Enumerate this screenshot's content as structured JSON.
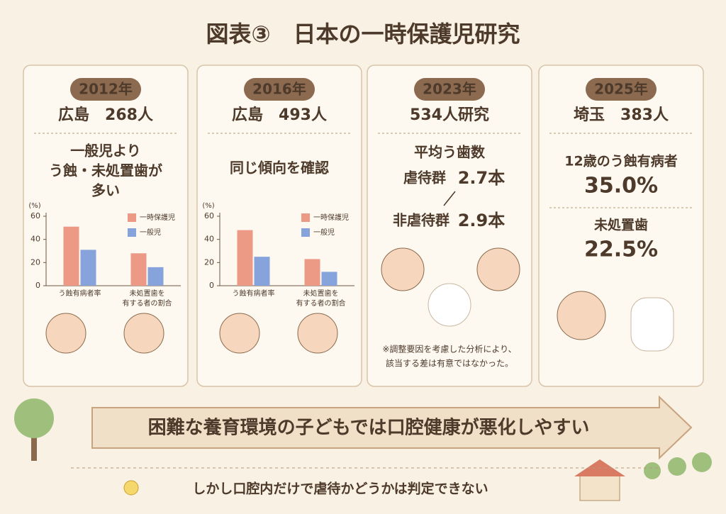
{
  "title": "図表③　日本の一時保護児研究",
  "cards": [
    {
      "year": "2012年",
      "headline": "広島　268人",
      "lines": [
        "一般児より",
        "う蝕・未処置歯が",
        "多い"
      ],
      "chart": {
        "type": "bar",
        "unit": "(%)",
        "categories": [
          [
            "う蝕有病者率"
          ],
          [
            "未処置歯を",
            "有する者の割合"
          ]
        ],
        "series": [
          {
            "name": "一時保護児",
            "color": "#ec9a86",
            "values": [
              51,
              28
            ]
          },
          {
            "name": "一般児",
            "color": "#86a3db",
            "values": [
              31,
              16
            ]
          }
        ],
        "ylim": [
          0,
          60
        ],
        "yticks": [
          0,
          20,
          40,
          60
        ]
      }
    },
    {
      "year": "2016年",
      "headline": "広島　493人",
      "lines": [
        "同じ傾向を確認"
      ],
      "chart": {
        "type": "bar",
        "unit": "(%)",
        "categories": [
          [
            "う蝕有病者率"
          ],
          [
            "未処置歯を",
            "有する者の割合"
          ]
        ],
        "series": [
          {
            "name": "一時保護児",
            "color": "#ec9a86",
            "values": [
              48,
              23
            ]
          },
          {
            "name": "一般児",
            "color": "#86a3db",
            "values": [
              25,
              12
            ]
          }
        ],
        "ylim": [
          0,
          60
        ],
        "yticks": [
          0,
          20,
          40,
          60
        ]
      }
    },
    {
      "year": "2023年",
      "headline": "534人研究",
      "subhead": "平均う歯数",
      "abuse": {
        "label": "虐待群",
        "value": "2.7本"
      },
      "nonabuse": {
        "label": "非虐待群",
        "value": "2.9本"
      },
      "note": [
        "※調整要因を考慮した分析により、",
        "該当する差は有意ではなかった。"
      ]
    },
    {
      "year": "2025年",
      "headline": "埼玉　383人",
      "stats": [
        {
          "label": "12歳のう蝕有病者",
          "value": "35.0%"
        },
        {
          "label": "未処置歯",
          "value": "22.5%"
        }
      ]
    }
  ],
  "arrow": "困難な養育環境の子どもでは口腔健康が悪化しやすい",
  "footer": "しかし口腔内だけで虐待かどうかは判定できない"
}
